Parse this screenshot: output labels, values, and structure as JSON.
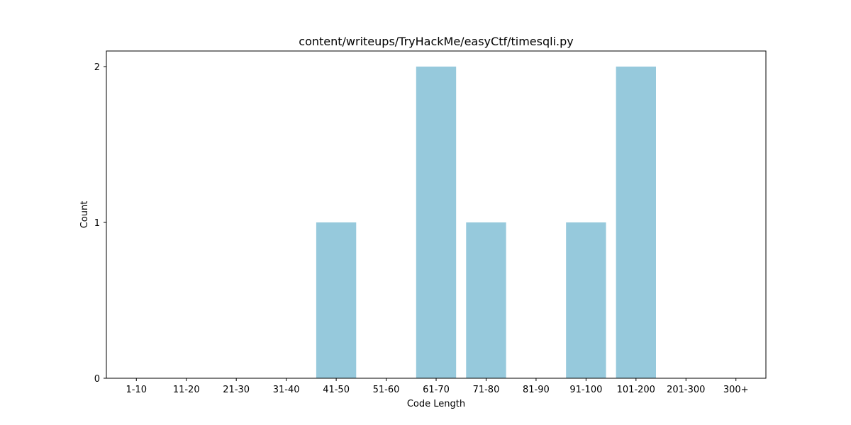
{
  "chart_data": {
    "type": "bar",
    "title": "content/writeups/TryHackMe/easyCtf/timesqli.py",
    "xlabel": "Code Length",
    "ylabel": "Count",
    "categories": [
      "1-10",
      "11-20",
      "21-30",
      "31-40",
      "41-50",
      "51-60",
      "61-70",
      "71-80",
      "81-90",
      "91-100",
      "101-200",
      "201-300",
      "300+"
    ],
    "values": [
      0,
      0,
      0,
      0,
      1,
      0,
      2,
      1,
      0,
      1,
      2,
      0,
      0
    ],
    "ylim": [
      0,
      2.1
    ],
    "yticks": [
      0,
      1,
      2
    ],
    "bar_color": "#96c9dc",
    "grid": false,
    "legend": "none"
  }
}
